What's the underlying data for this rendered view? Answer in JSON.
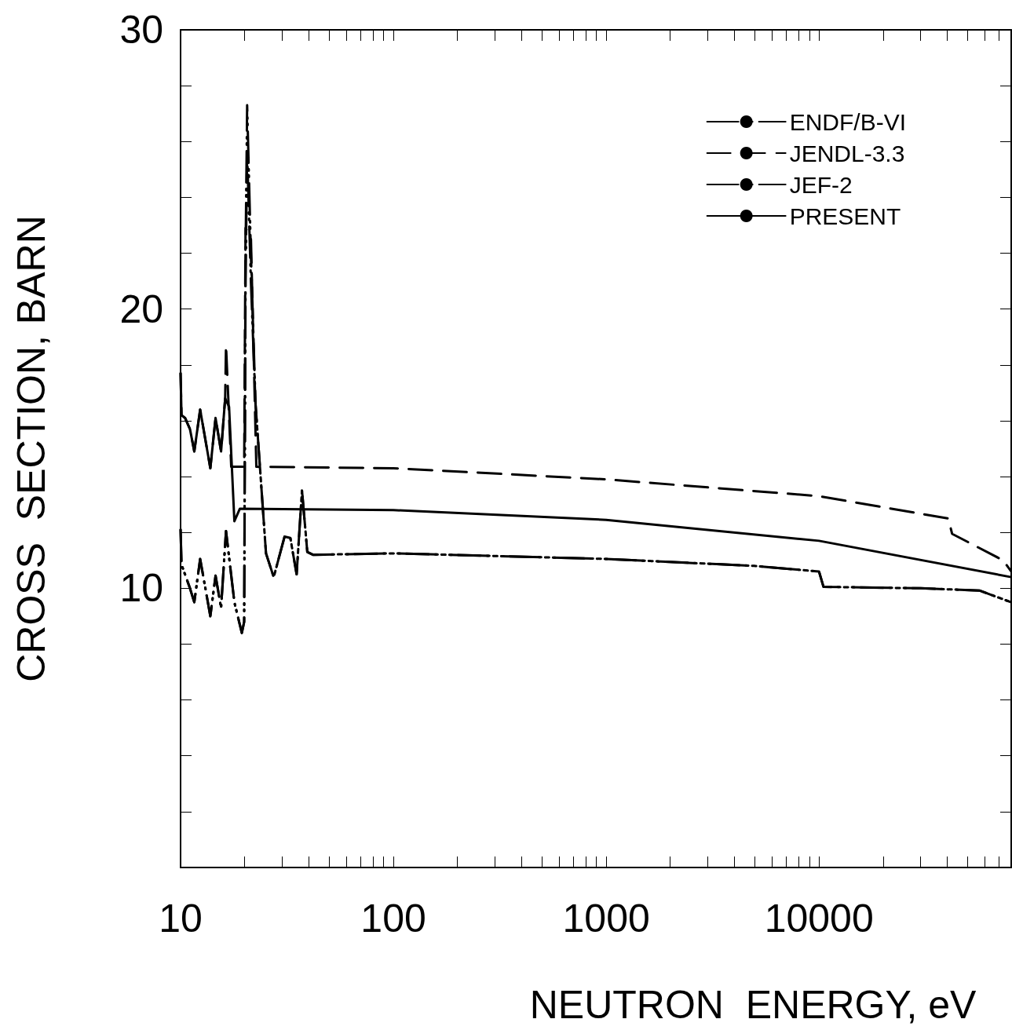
{
  "chart_data": {
    "type": "line",
    "xlabel": "NEUTRON  ENERGY, eV",
    "ylabel": "CROSS  SECTION, BARN",
    "log": "x",
    "grid": false,
    "legend": "top right",
    "marker": "none",
    "xlim": [
      10,
      80000
    ],
    "xticks": [
      10,
      {
        "value": 20,
        "label": null
      },
      {
        "value": 30,
        "label": null
      },
      {
        "value": 40,
        "label": null
      },
      {
        "value": 50,
        "label": null
      },
      {
        "value": 60,
        "label": null
      },
      {
        "value": 70,
        "label": null
      },
      {
        "value": 80,
        "label": null
      },
      {
        "value": 90,
        "label": null
      },
      100,
      {
        "value": 200,
        "label": null
      },
      {
        "value": 300,
        "label": null
      },
      {
        "value": 400,
        "label": null
      },
      {
        "value": 500,
        "label": null
      },
      {
        "value": 600,
        "label": null
      },
      {
        "value": 700,
        "label": null
      },
      {
        "value": 800,
        "label": null
      },
      {
        "value": 900,
        "label": null
      },
      1000,
      {
        "value": 2000,
        "label": null
      },
      {
        "value": 3000,
        "label": null
      },
      {
        "value": 4000,
        "label": null
      },
      {
        "value": 5000,
        "label": null
      },
      {
        "value": 6000,
        "label": null
      },
      {
        "value": 7000,
        "label": null
      },
      {
        "value": 8000,
        "label": null
      },
      {
        "value": 9000,
        "label": null
      },
      10000,
      {
        "value": 20000,
        "label": null
      },
      {
        "value": 30000,
        "label": null
      },
      {
        "value": 40000,
        "label": null
      },
      {
        "value": 50000,
        "label": null
      },
      {
        "value": 60000,
        "label": null
      },
      {
        "value": 70000,
        "label": null
      }
    ],
    "ylim": [
      0,
      30
    ],
    "yticks": [
      {
        "value": 2,
        "label": null
      },
      {
        "value": 4,
        "label": null
      },
      {
        "value": 6,
        "label": null
      },
      {
        "value": 8,
        "label": null
      },
      10,
      {
        "value": 12,
        "label": null
      },
      {
        "value": 14,
        "label": null
      },
      {
        "value": 16,
        "label": null
      },
      {
        "value": 18,
        "label": null
      },
      20,
      {
        "value": 22,
        "label": null
      },
      {
        "value": 24,
        "label": null
      },
      {
        "value": 26,
        "label": null
      },
      {
        "value": 28,
        "label": null
      },
      30
    ],
    "series": [
      {
        "name": "ENDF/B-VI",
        "color": "#000000",
        "line_style": "dotted",
        "x": [
          10,
          10.1,
          11.07,
          11.6,
          12.36,
          13.8,
          14.6,
          15.5,
          16.35,
          17.9,
          19.4,
          19.9,
          20.2,
          20.55,
          21.4,
          22.5,
          25.2,
          27.4,
          30.8,
          32.8,
          35.1,
          37.2,
          39.4,
          41.9,
          100,
          1000,
          5000,
          10000,
          10500,
          30000,
          56700,
          80000
        ],
        "values": [
          12.1,
          10.85,
          10.0,
          9.5,
          11.05,
          9.0,
          10.45,
          9.3,
          12.05,
          9.5,
          8.4,
          8.8,
          21,
          25.6,
          21,
          16.6,
          11.25,
          10.4,
          11.85,
          11.8,
          10.5,
          13.5,
          11.3,
          11.2,
          11.25,
          11.05,
          10.8,
          10.6,
          10.05,
          10.0,
          9.92,
          9.5
        ]
      },
      {
        "name": "JENDL-3.3",
        "color": "#000000",
        "line_style": "dashed",
        "x": [
          10,
          10.1,
          10.5,
          11.07,
          11.6,
          12.36,
          13.8,
          14.6,
          15.5,
          16.2,
          16.35,
          17.3,
          19.9,
          20.2,
          20.55,
          21.4,
          22.7,
          100,
          1000,
          10000,
          40500,
          42200,
          73300,
          80000
        ],
        "values": [
          17.7,
          16.2,
          16.1,
          15.7,
          14.9,
          16.4,
          14.3,
          16.1,
          14.9,
          16.8,
          18.7,
          14.35,
          14.35,
          22.9,
          22.8,
          22.6,
          14.35,
          14.3,
          13.9,
          13.3,
          12.5,
          11.95,
          11.0,
          10.6
        ]
      },
      {
        "name": "JEF-2",
        "color": "#000000",
        "line_style": "dotted",
        "x": [
          10,
          10.1,
          11.07,
          11.6,
          12.36,
          13.8,
          14.6,
          15.5,
          16.35,
          17.9,
          19.4,
          19.9,
          20.2,
          20.55,
          21.4,
          22.5,
          25.2,
          27.4,
          30.8,
          32.8,
          35.1,
          37.2,
          39.4,
          41.9,
          100,
          1000,
          5000,
          10000,
          10500,
          30000,
          56700,
          80000
        ],
        "values": [
          12.1,
          10.85,
          10.0,
          9.5,
          11.05,
          9.0,
          10.45,
          9.3,
          12.05,
          9.5,
          8.4,
          8.8,
          22,
          27.3,
          22,
          16.6,
          11.25,
          10.4,
          11.85,
          11.8,
          10.5,
          13.5,
          11.3,
          11.2,
          11.25,
          11.05,
          10.8,
          10.6,
          10.05,
          10.0,
          9.92,
          9.5
        ]
      },
      {
        "name": "PRESENT",
        "color": "#000000",
        "line_style": "solid",
        "x": [
          10,
          10.1,
          10.5,
          11.07,
          11.6,
          12.36,
          13.8,
          14.6,
          15.5,
          16.2,
          16.9,
          17.9,
          19.0,
          100,
          1000,
          10000,
          80000
        ],
        "values": [
          17.7,
          16.2,
          16.1,
          15.7,
          14.9,
          16.4,
          14.3,
          16.1,
          14.9,
          16.8,
          16.5,
          12.4,
          12.85,
          12.8,
          12.45,
          11.7,
          10.4
        ]
      }
    ]
  }
}
